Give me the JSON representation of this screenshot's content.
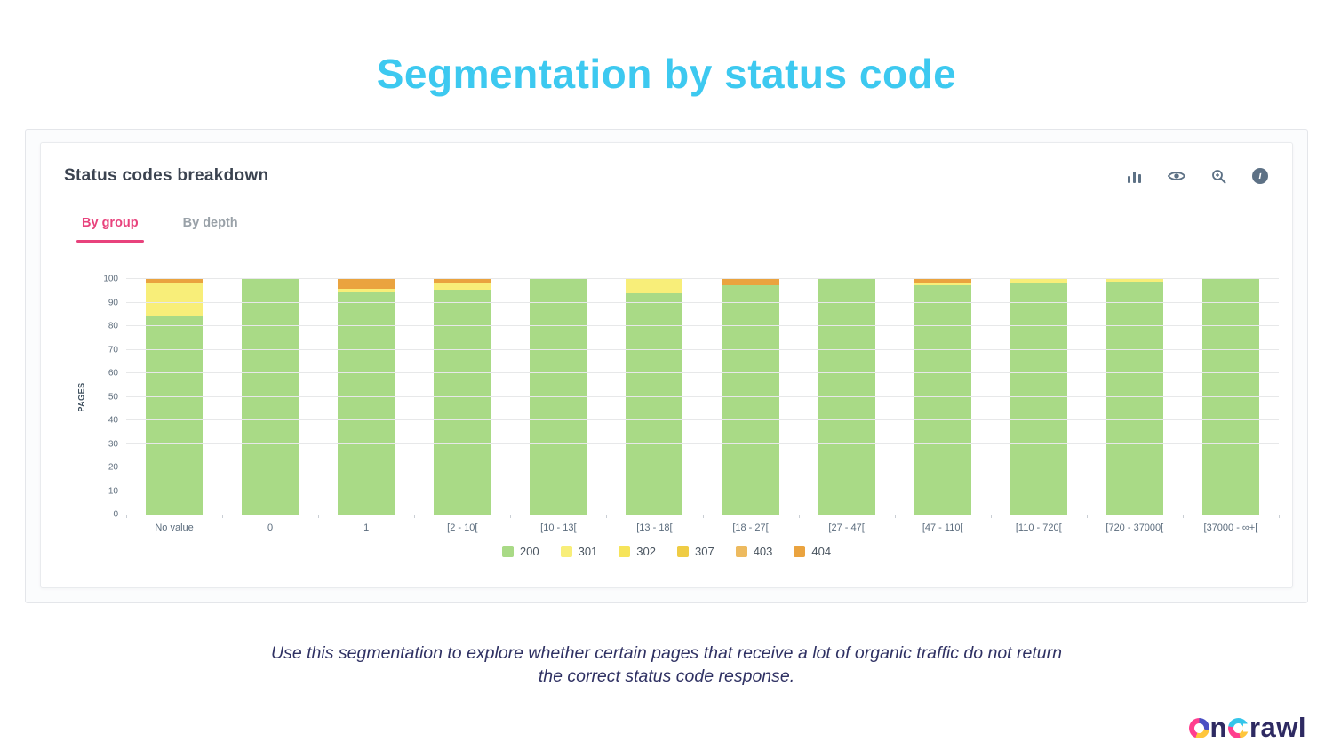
{
  "page": {
    "title": "Segmentation by status code",
    "caption_line1": "Use this segmentation to explore whether certain pages that receive a lot of organic traffic do not return",
    "caption_line2": "the correct status code response.",
    "accent_color": "#3dc9f0"
  },
  "card": {
    "title": "Status codes breakdown",
    "tabs": [
      {
        "label": "By group",
        "active": true
      },
      {
        "label": "By depth",
        "active": false
      }
    ],
    "toolbar_icons": [
      "bar-chart",
      "eye",
      "zoom",
      "info"
    ]
  },
  "chart_data": {
    "type": "bar",
    "stacked": true,
    "title": "Status codes breakdown",
    "xlabel": "",
    "ylabel": "PAGES",
    "ylim": [
      0,
      100
    ],
    "yticks": [
      0,
      10,
      20,
      30,
      40,
      50,
      60,
      70,
      80,
      90,
      100
    ],
    "grid": true,
    "legend_position": "bottom",
    "categories": [
      "No value",
      "0",
      "1",
      "[2 - 10[",
      "[10 - 13[",
      "[13 - 18[",
      "[18 - 27[",
      "[27 - 47[",
      "[47 - 110[",
      "[110 - 720[",
      "[720 - 37000[",
      "[37000 - ∞+["
    ],
    "legend": [
      {
        "label": "200",
        "color": "#a9da86"
      },
      {
        "label": "301",
        "color": "#f8ee79"
      },
      {
        "label": "302",
        "color": "#f6e45a"
      },
      {
        "label": "307",
        "color": "#efcc44"
      },
      {
        "label": "403",
        "color": "#edba5f"
      },
      {
        "label": "404",
        "color": "#eaa33f"
      }
    ],
    "series": [
      {
        "name": "200",
        "color": "#a9da86",
        "values": [
          84,
          100,
          94.5,
          95.5,
          100,
          94,
          97.5,
          100,
          97.5,
          98.5,
          99,
          100
        ]
      },
      {
        "name": "301",
        "color": "#f8ee79",
        "values": [
          14.5,
          0,
          1.5,
          2.5,
          0,
          6,
          0,
          0,
          1,
          1.5,
          1,
          0
        ]
      },
      {
        "name": "302",
        "color": "#f6e45a",
        "values": [
          0,
          0,
          0,
          0,
          0,
          0,
          0,
          0,
          0,
          0,
          0,
          0
        ]
      },
      {
        "name": "307",
        "color": "#efcc44",
        "values": [
          0,
          0,
          0,
          0,
          0,
          0,
          0,
          0,
          0,
          0,
          0,
          0
        ]
      },
      {
        "name": "403",
        "color": "#edba5f",
        "values": [
          0,
          0,
          0,
          0,
          0,
          0,
          0,
          0,
          0,
          0,
          0,
          0
        ]
      },
      {
        "name": "404",
        "color": "#eaa33f",
        "values": [
          1.5,
          0,
          4,
          2,
          0,
          0,
          2.5,
          0,
          1.5,
          0,
          0,
          0
        ]
      }
    ]
  },
  "footer": {
    "logo_text": "oncrawl"
  }
}
